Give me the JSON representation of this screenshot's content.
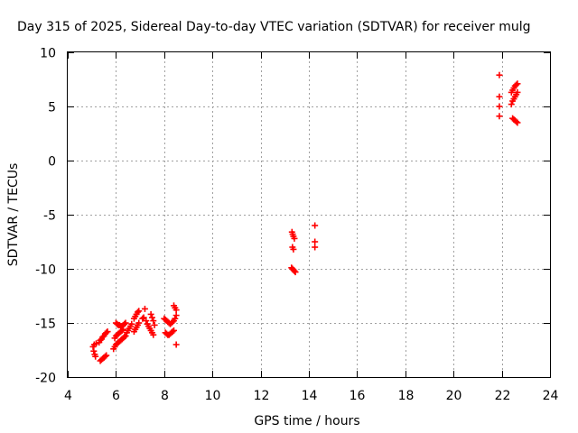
{
  "chart_data": {
    "type": "scatter",
    "title": "Day 315 of 2025, Sidereal Day-to-day VTEC variation (SDTVAR) for receiver mulg",
    "xlabel": "GPS time / hours",
    "ylabel": "SDTVAR / TECUs",
    "xlim": [
      4,
      24
    ],
    "ylim": [
      -20,
      10
    ],
    "xticks": [
      "4",
      "6",
      "8",
      "10",
      "12",
      "14",
      "16",
      "18",
      "20",
      "22",
      "24"
    ],
    "yticks": [
      "10",
      "5",
      "0",
      "-5",
      "-10",
      "-15",
      "-20"
    ],
    "grid": true,
    "marker": "+",
    "color": "#ff0000",
    "series": [
      {
        "name": "SDTVAR",
        "points": [
          [
            5.05,
            -17.2
          ],
          [
            5.08,
            -17.6
          ],
          [
            5.1,
            -17.0
          ],
          [
            5.12,
            -17.9
          ],
          [
            5.15,
            -18.1
          ],
          [
            5.18,
            -16.9
          ],
          [
            5.3,
            -16.8
          ],
          [
            5.35,
            -16.6
          ],
          [
            5.4,
            -16.5
          ],
          [
            5.45,
            -16.3
          ],
          [
            5.5,
            -16.2
          ],
          [
            5.55,
            -16.0
          ],
          [
            5.6,
            -15.9
          ],
          [
            5.65,
            -15.8
          ],
          [
            5.35,
            -18.5
          ],
          [
            5.4,
            -18.4
          ],
          [
            5.45,
            -18.3
          ],
          [
            5.5,
            -18.2
          ],
          [
            5.55,
            -18.1
          ],
          [
            5.6,
            -18.0
          ],
          [
            5.9,
            -17.4
          ],
          [
            5.95,
            -17.2
          ],
          [
            6.0,
            -17.0
          ],
          [
            6.05,
            -16.9
          ],
          [
            6.1,
            -16.8
          ],
          [
            6.15,
            -16.7
          ],
          [
            6.2,
            -16.6
          ],
          [
            6.25,
            -16.5
          ],
          [
            6.3,
            -16.4
          ],
          [
            6.35,
            -16.3
          ],
          [
            6.4,
            -16.2
          ],
          [
            5.95,
            -16.4
          ],
          [
            6.0,
            -16.2
          ],
          [
            6.05,
            -16.1
          ],
          [
            6.1,
            -16.0
          ],
          [
            6.15,
            -15.9
          ],
          [
            6.2,
            -15.8
          ],
          [
            6.25,
            -15.7
          ],
          [
            6.3,
            -15.6
          ],
          [
            6.0,
            -15.0
          ],
          [
            6.05,
            -15.1
          ],
          [
            6.1,
            -15.2
          ],
          [
            6.15,
            -15.2
          ],
          [
            6.2,
            -15.3
          ],
          [
            6.25,
            -15.3
          ],
          [
            6.3,
            -15.2
          ],
          [
            6.35,
            -15.1
          ],
          [
            6.4,
            -15.0
          ],
          [
            6.45,
            -15.9
          ],
          [
            6.5,
            -15.7
          ],
          [
            6.55,
            -15.5
          ],
          [
            6.6,
            -15.3
          ],
          [
            6.65,
            -15.1
          ],
          [
            6.75,
            -15.8
          ],
          [
            6.8,
            -15.6
          ],
          [
            6.85,
            -15.4
          ],
          [
            6.9,
            -15.2
          ],
          [
            6.95,
            -15.0
          ],
          [
            6.75,
            -14.6
          ],
          [
            6.8,
            -14.4
          ],
          [
            6.85,
            -14.2
          ],
          [
            6.9,
            -14.0
          ],
          [
            6.95,
            -13.9
          ],
          [
            7.1,
            -14.6
          ],
          [
            7.15,
            -14.5
          ],
          [
            7.2,
            -13.7
          ],
          [
            7.25,
            -14.8
          ],
          [
            7.3,
            -15.1
          ],
          [
            7.35,
            -15.3
          ],
          [
            7.4,
            -15.5
          ],
          [
            7.45,
            -15.7
          ],
          [
            7.5,
            -15.9
          ],
          [
            7.55,
            -16.1
          ],
          [
            7.45,
            -14.2
          ],
          [
            7.5,
            -14.5
          ],
          [
            7.55,
            -14.8
          ],
          [
            7.6,
            -15.2
          ],
          [
            8.0,
            -14.6
          ],
          [
            8.05,
            -14.7
          ],
          [
            8.1,
            -14.8
          ],
          [
            8.15,
            -14.9
          ],
          [
            8.2,
            -15.0
          ],
          [
            8.25,
            -15.1
          ],
          [
            8.3,
            -15.0
          ],
          [
            8.35,
            -14.9
          ],
          [
            8.4,
            -14.8
          ],
          [
            8.45,
            -14.6
          ],
          [
            8.5,
            -14.3
          ],
          [
            8.05,
            -15.9
          ],
          [
            8.1,
            -16.0
          ],
          [
            8.15,
            -16.1
          ],
          [
            8.2,
            -16.1
          ],
          [
            8.25,
            -16.0
          ],
          [
            8.3,
            -15.9
          ],
          [
            8.35,
            -15.8
          ],
          [
            8.4,
            -15.7
          ],
          [
            8.4,
            -13.4
          ],
          [
            8.45,
            -13.6
          ],
          [
            8.5,
            -13.8
          ],
          [
            8.5,
            -17.0
          ],
          [
            13.3,
            -6.6
          ],
          [
            13.33,
            -6.8
          ],
          [
            13.36,
            -7.0
          ],
          [
            13.4,
            -7.2
          ],
          [
            13.32,
            -8.0
          ],
          [
            13.36,
            -8.2
          ],
          [
            13.28,
            -9.9
          ],
          [
            13.32,
            -10.0
          ],
          [
            13.36,
            -10.1
          ],
          [
            13.4,
            -10.2
          ],
          [
            13.44,
            -10.3
          ],
          [
            14.25,
            -6.0
          ],
          [
            14.25,
            -7.5
          ],
          [
            14.25,
            -8.0
          ],
          [
            21.9,
            7.9
          ],
          [
            21.9,
            5.9
          ],
          [
            21.9,
            5.0
          ],
          [
            21.9,
            4.1
          ],
          [
            22.4,
            6.3
          ],
          [
            22.45,
            6.5
          ],
          [
            22.5,
            6.7
          ],
          [
            22.55,
            6.9
          ],
          [
            22.6,
            7.0
          ],
          [
            22.65,
            7.1
          ],
          [
            22.4,
            5.2
          ],
          [
            22.45,
            5.5
          ],
          [
            22.5,
            5.7
          ],
          [
            22.55,
            5.9
          ],
          [
            22.6,
            6.1
          ],
          [
            22.65,
            6.3
          ],
          [
            22.45,
            3.9
          ],
          [
            22.5,
            3.8
          ],
          [
            22.55,
            3.7
          ],
          [
            22.6,
            3.6
          ],
          [
            22.65,
            3.5
          ]
        ]
      }
    ]
  }
}
